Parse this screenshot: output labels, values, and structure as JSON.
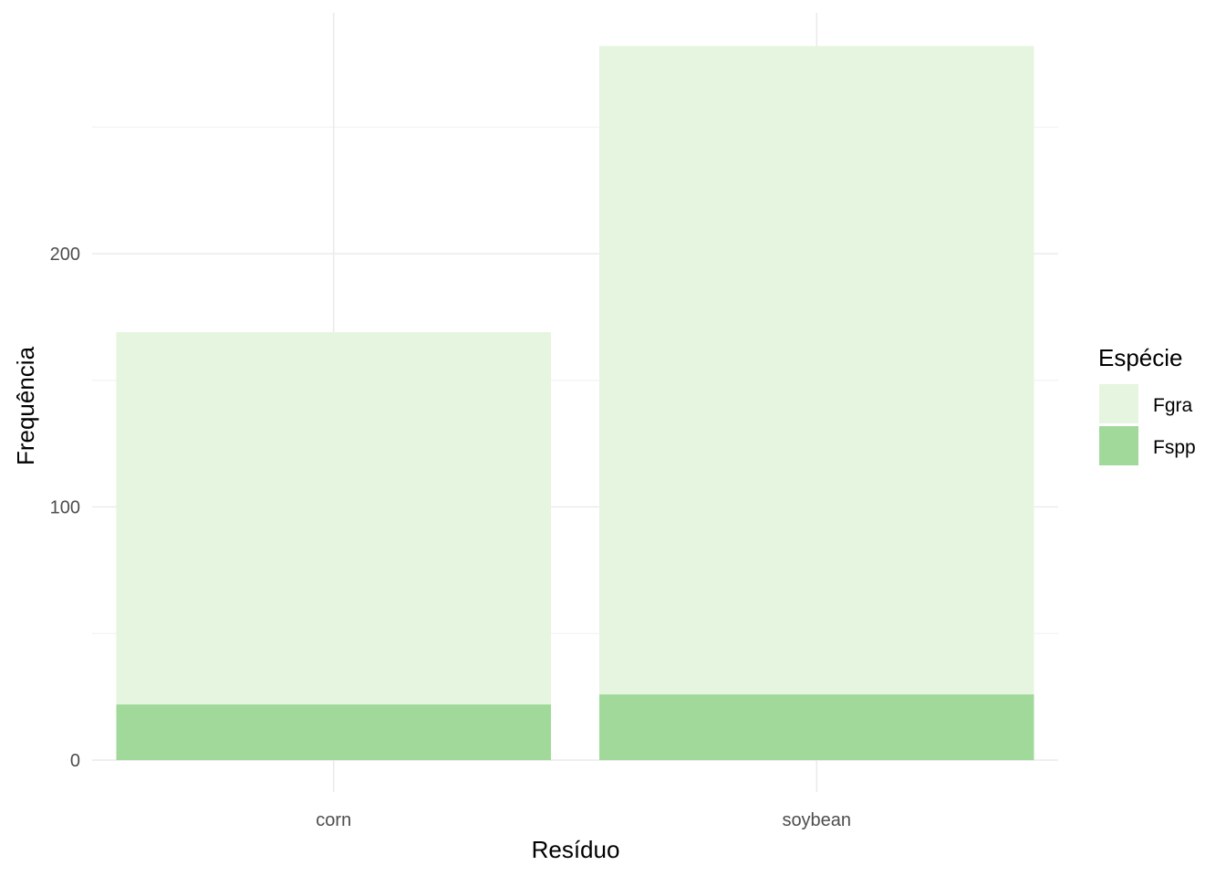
{
  "chart_data": {
    "type": "bar",
    "stacked": true,
    "title": "",
    "xlabel": "Resíduo",
    "ylabel": "Frequência",
    "categories": [
      "corn",
      "soybean"
    ],
    "series": [
      {
        "name": "Fspp",
        "values": [
          22,
          26
        ],
        "color": "#a1d99b"
      },
      {
        "name": "Fgra",
        "values": [
          147,
          256
        ],
        "color": "#e5f5e0"
      }
    ],
    "ylim": [
      0,
      295
    ],
    "yticks": [
      0,
      100,
      200
    ],
    "ytick_labels": [
      "0",
      "100",
      "200"
    ],
    "grid": true,
    "legend": {
      "title": "Espécie",
      "position": "right",
      "items": [
        "Fgra",
        "Fspp"
      ]
    }
  }
}
